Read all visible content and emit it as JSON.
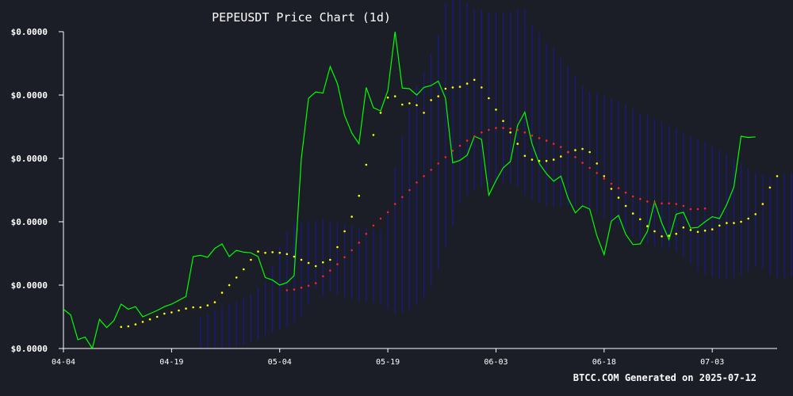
{
  "chart_data": {
    "type": "line",
    "title": "PEPEUSDT Price Chart (1d)",
    "xlabel": "",
    "ylabel": "",
    "x_range": [
      "2025-04-04",
      "2025-07-12"
    ],
    "x_ticks": [
      {
        "date": "2025-04-04",
        "label": "04-04"
      },
      {
        "date": "2025-04-19",
        "label": "04-19"
      },
      {
        "date": "2025-05-04",
        "label": "05-04"
      },
      {
        "date": "2025-05-19",
        "label": "05-19"
      },
      {
        "date": "2025-06-03",
        "label": "06-03"
      },
      {
        "date": "2025-06-18",
        "label": "06-18"
      },
      {
        "date": "2025-07-03",
        "label": "07-03"
      }
    ],
    "y_range": [
      0,
      5
    ],
    "y_ticks": [
      {
        "value": 0,
        "label": "$0.0000"
      },
      {
        "value": 1,
        "label": "$0.0000"
      },
      {
        "value": 2,
        "label": "$0.0000"
      },
      {
        "value": 3,
        "label": "$0.0000"
      },
      {
        "value": 4,
        "label": "$0.0000"
      },
      {
        "value": 5,
        "label": "$0.0000"
      }
    ],
    "grid": false,
    "colors": {
      "background": "#1b1d27",
      "price": "#00ff00",
      "ma_short": "#ffff00",
      "ma_long": "#ff2020",
      "band": "#1a1a8c",
      "axis": "#ffffff"
    },
    "series": [
      {
        "style": "line",
        "color": "#00ff00",
        "values": [
          0.62,
          0.53,
          0.14,
          0.18,
          0.0,
          0.46,
          0.33,
          0.44,
          0.7,
          0.62,
          0.66,
          0.5,
          0.55,
          0.6,
          0.66,
          0.7,
          0.76,
          0.82,
          1.45,
          1.47,
          1.44,
          1.58,
          1.65,
          1.45,
          1.55,
          1.52,
          1.51,
          1.45,
          1.12,
          1.08,
          1.0,
          1.04,
          1.15,
          3.0,
          3.95,
          4.05,
          4.03,
          4.45,
          4.18,
          3.68,
          3.4,
          3.23,
          4.12,
          3.8,
          3.75,
          4.07,
          5.0,
          4.11,
          4.1,
          4.0,
          4.12,
          4.15,
          4.22,
          3.95,
          2.93,
          2.97,
          3.05,
          3.35,
          3.3,
          2.42,
          2.65,
          2.85,
          2.95,
          3.52,
          3.73,
          3.23,
          2.92,
          2.76,
          2.64,
          2.72,
          2.37,
          2.14,
          2.25,
          2.2,
          1.78,
          1.48,
          2.01,
          2.1,
          1.8,
          1.64,
          1.65,
          1.85,
          2.32,
          1.98,
          1.72,
          2.12,
          2.15,
          1.9,
          1.91,
          2.0,
          2.08,
          2.05,
          2.27,
          2.55,
          3.35,
          3.33,
          3.34
        ]
      },
      {
        "style": "dots",
        "color": "#ffff00",
        "x_offset": 8,
        "values": [
          0.34,
          0.35,
          0.38,
          0.42,
          0.46,
          0.5,
          0.55,
          0.57,
          0.6,
          0.63,
          0.65,
          0.65,
          0.68,
          0.73,
          0.88,
          1.0,
          1.12,
          1.25,
          1.4,
          1.53,
          1.51,
          1.52,
          1.51,
          1.49,
          1.45,
          1.4,
          1.35,
          1.3,
          1.36,
          1.4,
          1.6,
          1.85,
          2.08,
          2.41,
          2.9,
          3.37,
          3.72,
          3.96,
          3.98,
          3.85,
          3.87,
          3.84,
          3.72,
          3.92,
          3.98,
          4.1,
          4.12,
          4.13,
          4.18,
          4.24,
          4.12,
          3.95,
          3.77,
          3.59,
          3.41,
          3.23,
          3.04,
          2.98,
          2.96,
          2.96,
          2.98,
          3.03,
          3.1,
          3.13,
          3.15,
          3.1,
          2.92,
          2.72,
          2.52,
          2.38,
          2.25,
          2.13,
          2.04,
          1.93,
          1.85,
          1.77,
          1.78,
          1.81,
          1.91,
          1.87,
          1.84,
          1.86,
          1.88,
          1.94,
          1.98,
          1.98,
          2.0,
          2.05,
          2.12,
          2.28,
          2.54,
          2.72
        ]
      },
      {
        "style": "dots",
        "color": "#ff2020",
        "x_offset": 31,
        "values": [
          0.92,
          0.93,
          0.96,
          0.99,
          1.03,
          1.14,
          1.23,
          1.33,
          1.44,
          1.55,
          1.67,
          1.81,
          1.94,
          2.05,
          2.15,
          2.28,
          2.39,
          2.5,
          2.62,
          2.72,
          2.82,
          2.92,
          3.02,
          3.12,
          3.2,
          3.28,
          3.35,
          3.41,
          3.45,
          3.48,
          3.48,
          3.47,
          3.45,
          3.41,
          3.36,
          3.32,
          3.28,
          3.23,
          3.18,
          3.1,
          3.02,
          2.93,
          2.85,
          2.77,
          2.68,
          2.6,
          2.53,
          2.46,
          2.4,
          2.36,
          2.32,
          2.3,
          2.29,
          2.29,
          2.28,
          2.25,
          2.2,
          2.2,
          2.21
        ]
      }
    ],
    "band": {
      "x_offset": 19,
      "upper": [
        0.5,
        0.55,
        0.6,
        0.65,
        0.7,
        0.74,
        0.8,
        0.86,
        0.95,
        1.05,
        1.3,
        1.6,
        1.85,
        1.98,
        2.0,
        2.0,
        2.02,
        2.03,
        2.0,
        1.98,
        1.96,
        1.94,
        1.92,
        1.9,
        1.88,
        1.86,
        2.2,
        2.85,
        3.35,
        3.8,
        4.15,
        4.35,
        4.65,
        4.95,
        5.45,
        5.55,
        5.5,
        5.45,
        5.35,
        5.35,
        5.3,
        5.3,
        5.3,
        5.32,
        5.35,
        5.35,
        5.1,
        4.98,
        4.82,
        4.74,
        4.6,
        4.45,
        4.3,
        4.15,
        4.06,
        4.02,
        3.98,
        3.95,
        3.9,
        3.85,
        3.78,
        3.71,
        3.68,
        3.62,
        3.58,
        3.52,
        3.46,
        3.41,
        3.35,
        3.3,
        3.25,
        3.2,
        3.13,
        3.07,
        3.0,
        2.93,
        2.84,
        2.77,
        2.74,
        2.72,
        2.73,
        2.74,
        2.76,
        2.78
      ],
      "lower": [
        0.0,
        0.0,
        0.0,
        0.0,
        0.0,
        0.02,
        0.06,
        0.1,
        0.15,
        0.2,
        0.25,
        0.3,
        0.35,
        0.4,
        0.5,
        0.7,
        0.95,
        0.82,
        0.9,
        0.85,
        0.8,
        0.78,
        0.76,
        0.74,
        0.72,
        0.7,
        0.62,
        0.56,
        0.57,
        0.62,
        0.7,
        0.8,
        0.98,
        1.25,
        1.6,
        1.95,
        2.28,
        2.42,
        2.5,
        2.55,
        2.58,
        2.6,
        2.62,
        2.6,
        2.55,
        2.42,
        2.36,
        2.3,
        2.26,
        2.24,
        2.24,
        2.25,
        2.24,
        2.24,
        2.18,
        2.12,
        2.06,
        2.02,
        1.94,
        1.86,
        1.78,
        1.72,
        1.66,
        1.62,
        1.6,
        1.6,
        1.54,
        1.44,
        1.34,
        1.24,
        1.17,
        1.13,
        1.1,
        1.1,
        1.12,
        1.16,
        1.22,
        1.29,
        1.26,
        1.16,
        1.12,
        1.12,
        1.14,
        1.16
      ]
    }
  },
  "footer": {
    "brand": "BTCC.COM",
    "generated_label": "Generated on",
    "date": "2025-07-12"
  }
}
